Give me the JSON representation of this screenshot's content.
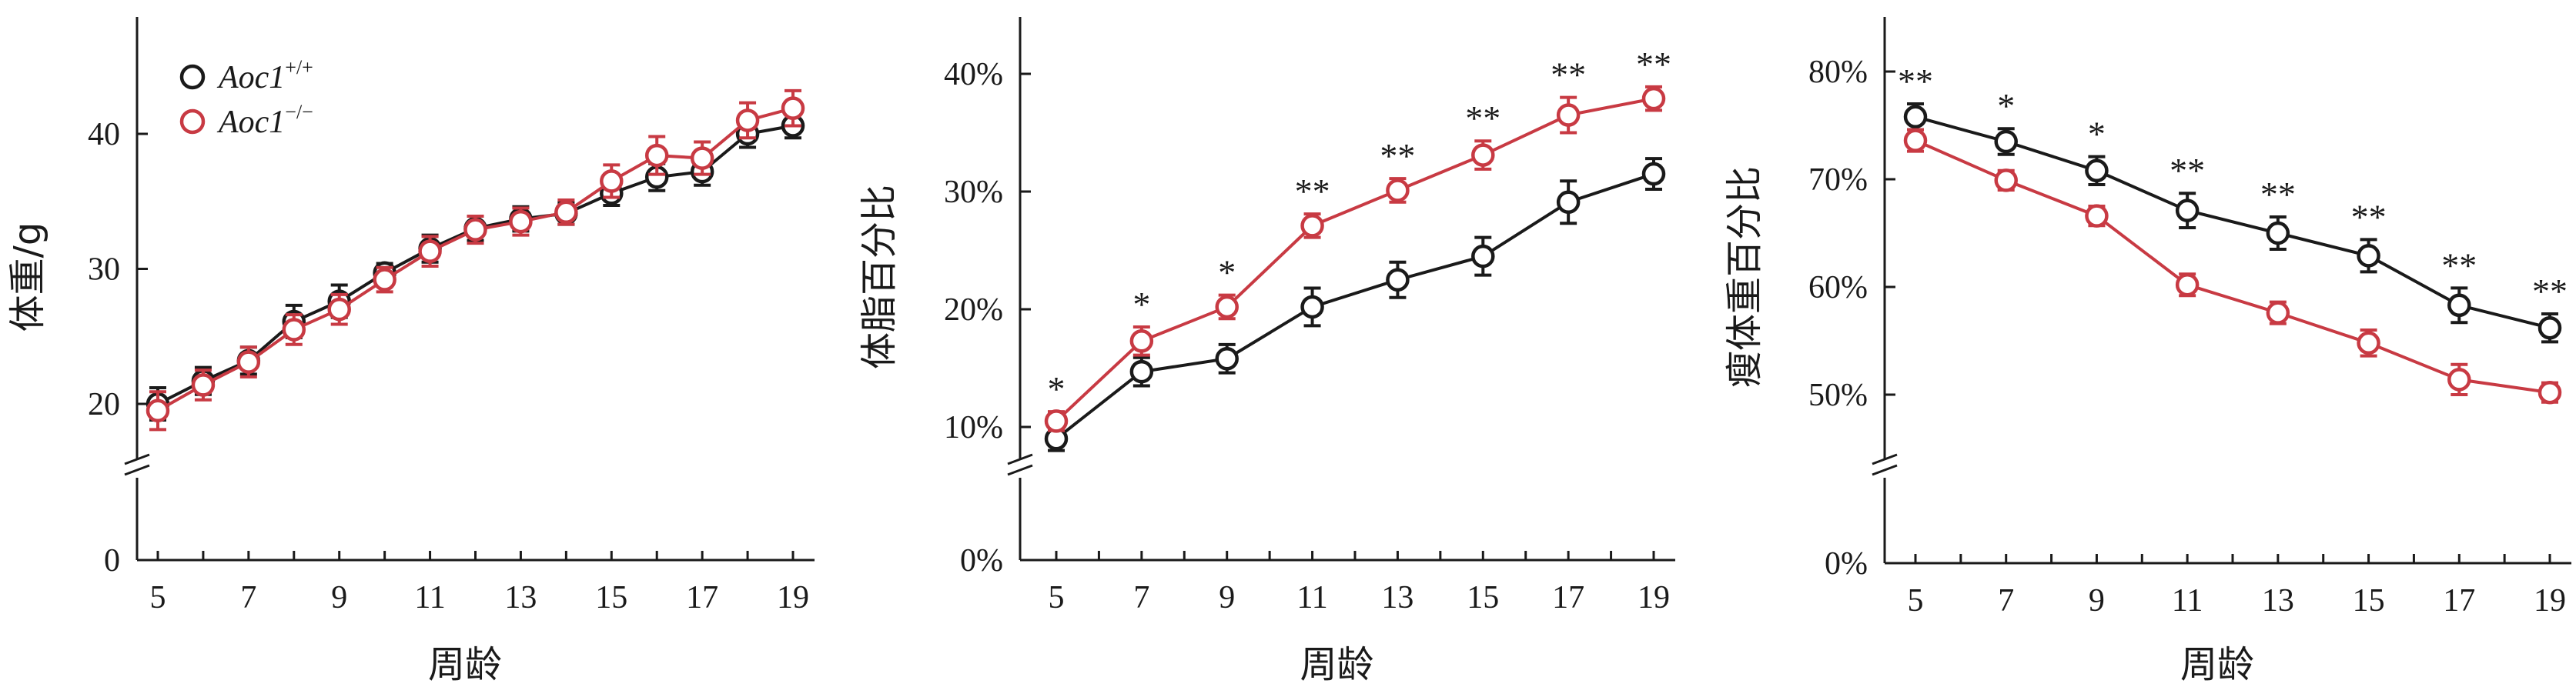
{
  "chart_data": [
    {
      "type": "line",
      "title": "",
      "xlabel": "周龄",
      "ylabel": "体重/g",
      "x": [
        5,
        6,
        7,
        8,
        9,
        10,
        11,
        12,
        13,
        14,
        15,
        16,
        17,
        18,
        19
      ],
      "x_ticks": [
        5,
        7,
        9,
        11,
        13,
        15,
        17,
        19
      ],
      "y_ticks": [
        {
          "value": 0,
          "label": "0"
        },
        {
          "value": 20,
          "label": "20"
        },
        {
          "value": 30,
          "label": "30"
        },
        {
          "value": 40,
          "label": "40"
        }
      ],
      "ylim": [
        0,
        48
      ],
      "y_axis_break": true,
      "legend_position": "top-left",
      "series": [
        {
          "name": "Aoc1",
          "name_sup": "+/+",
          "color": "#1a1a1a",
          "values": [
            20.0,
            21.7,
            23.2,
            26.1,
            27.6,
            29.7,
            31.5,
            33.0,
            33.7,
            34.1,
            35.6,
            36.8,
            37.2,
            40.0,
            40.6
          ],
          "errors": [
            1.2,
            1.0,
            1.0,
            1.2,
            1.2,
            0.7,
            1.0,
            0.9,
            0.9,
            0.8,
            0.9,
            1.0,
            1.0,
            1.0,
            0.9
          ]
        },
        {
          "name": "Aoc1",
          "name_sup": "−/−",
          "color": "#c83a43",
          "values": [
            19.5,
            21.4,
            23.1,
            25.5,
            27.0,
            29.2,
            31.3,
            32.9,
            33.5,
            34.2,
            36.5,
            38.4,
            38.2,
            41.0,
            41.9
          ],
          "errors": [
            1.4,
            1.1,
            1.1,
            1.1,
            1.1,
            0.9,
            1.1,
            1.0,
            1.0,
            0.9,
            1.2,
            1.4,
            1.2,
            1.3,
            1.3
          ]
        }
      ],
      "annotations": []
    },
    {
      "type": "line",
      "title": "",
      "xlabel": "周龄",
      "ylabel": "体脂百分比",
      "x": [
        5,
        7,
        9,
        11,
        13,
        15,
        17,
        19
      ],
      "x_ticks": [
        5,
        7,
        9,
        11,
        13,
        15,
        17,
        19
      ],
      "y_ticks": [
        {
          "value": 0,
          "label": "0%"
        },
        {
          "value": 10,
          "label": "10%"
        },
        {
          "value": 20,
          "label": "20%"
        },
        {
          "value": 30,
          "label": "30%"
        },
        {
          "value": 40,
          "label": "40%"
        }
      ],
      "ylim": [
        0,
        45
      ],
      "y_axis_break": true,
      "series": [
        {
          "name": "Aoc1",
          "name_sup": "+/+",
          "color": "#1a1a1a",
          "values": [
            9.0,
            14.7,
            15.8,
            20.2,
            22.5,
            24.5,
            29.1,
            31.5
          ],
          "errors": [
            1.0,
            1.2,
            1.2,
            1.6,
            1.5,
            1.6,
            1.8,
            1.3
          ]
        },
        {
          "name": "Aoc1",
          "name_sup": "−/−",
          "color": "#c83a43",
          "values": [
            10.5,
            17.3,
            20.2,
            27.1,
            30.1,
            33.1,
            36.5,
            37.9
          ],
          "errors": [
            0.8,
            1.2,
            1.0,
            1.0,
            1.0,
            1.2,
            1.5,
            1.0
          ]
        }
      ],
      "annotations": [
        {
          "x": 5,
          "text": "*"
        },
        {
          "x": 7,
          "text": "*"
        },
        {
          "x": 9,
          "text": "*"
        },
        {
          "x": 11,
          "text": "**"
        },
        {
          "x": 13,
          "text": "**"
        },
        {
          "x": 15,
          "text": "**"
        },
        {
          "x": 17,
          "text": "**"
        },
        {
          "x": 19,
          "text": "**"
        }
      ]
    },
    {
      "type": "line",
      "title": "",
      "xlabel": "周龄",
      "ylabel": "瘦体重百分比",
      "x": [
        5,
        7,
        9,
        11,
        13,
        15,
        17,
        19
      ],
      "x_ticks": [
        5,
        7,
        9,
        11,
        13,
        15,
        17,
        19
      ],
      "y_ticks": [
        {
          "value": 0,
          "label": "0%"
        },
        {
          "value": 50,
          "label": "50%"
        },
        {
          "value": 60,
          "label": "60%"
        },
        {
          "value": 70,
          "label": "70%"
        },
        {
          "value": 80,
          "label": "80%"
        }
      ],
      "ylim": [
        0,
        85
      ],
      "y_axis_break": true,
      "series": [
        {
          "name": "Aoc1",
          "name_sup": "+/+",
          "color": "#1a1a1a",
          "values": [
            75.8,
            73.5,
            70.8,
            67.1,
            65.0,
            62.9,
            58.3,
            56.2
          ],
          "errors": [
            1.2,
            1.2,
            1.3,
            1.6,
            1.5,
            1.5,
            1.6,
            1.3
          ]
        },
        {
          "name": "Aoc1",
          "name_sup": "−/−",
          "color": "#c83a43",
          "values": [
            73.6,
            69.9,
            66.6,
            60.2,
            57.6,
            54.8,
            51.4,
            50.2
          ],
          "errors": [
            1.0,
            0.9,
            0.9,
            1.0,
            1.0,
            1.2,
            1.4,
            0.9
          ]
        }
      ],
      "annotations": [
        {
          "x": 5,
          "text": "**"
        },
        {
          "x": 7,
          "text": "*"
        },
        {
          "x": 9,
          "text": "*"
        },
        {
          "x": 11,
          "text": "**"
        },
        {
          "x": 13,
          "text": "**"
        },
        {
          "x": 15,
          "text": "**"
        },
        {
          "x": 17,
          "text": "**"
        },
        {
          "x": 19,
          "text": "**"
        }
      ]
    }
  ]
}
